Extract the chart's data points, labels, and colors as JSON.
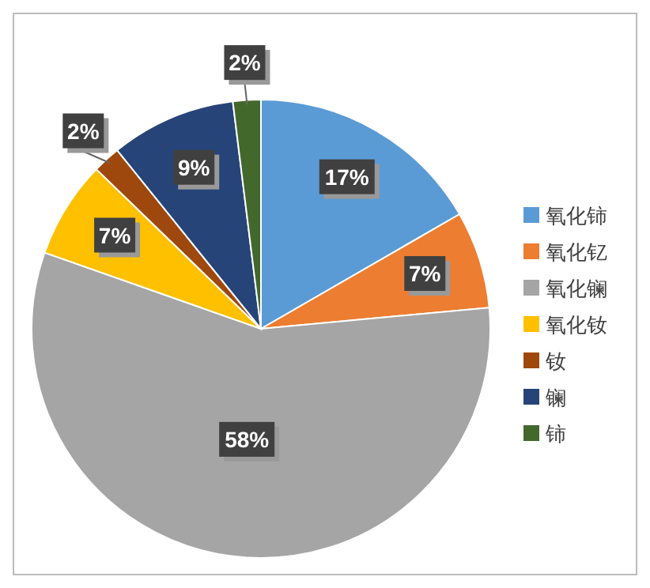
{
  "chart_data": {
    "type": "pie",
    "categories": [
      "氧化铈",
      "氧化钇",
      "氧化镧",
      "氧化钕",
      "钕",
      "镧",
      "铈"
    ],
    "values": [
      17,
      7,
      58,
      7,
      2,
      9,
      2
    ],
    "colors": [
      "#5b9bd5",
      "#ed7d31",
      "#a5a5a5",
      "#ffc000",
      "#9e480e",
      "#264478",
      "#43682b"
    ],
    "value_labels": [
      "17%",
      "7%",
      "58%",
      "7%",
      "2%",
      "9%",
      "2%"
    ],
    "legend": "right"
  }
}
